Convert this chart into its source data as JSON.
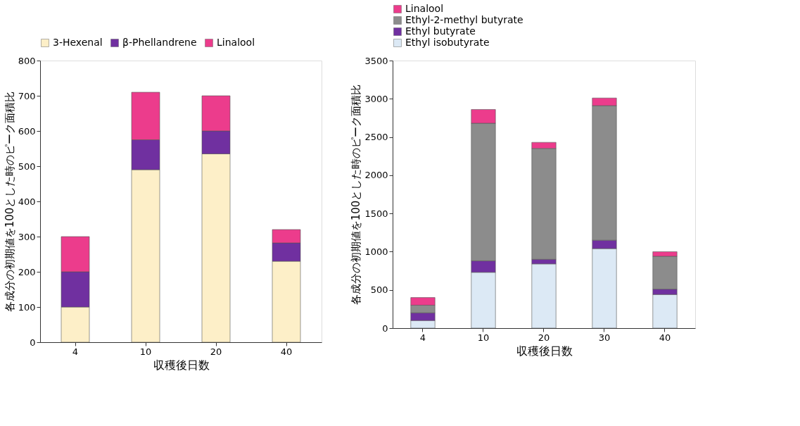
{
  "chart_data": [
    {
      "type": "bar",
      "stacked": true,
      "xlabel": "収穫後日数",
      "ylabel": "各成分の初期値を100とした時のピーク面積比",
      "categories": [
        "4",
        "10",
        "20",
        "40"
      ],
      "ylim": [
        0,
        800
      ],
      "yticks": [
        0,
        100,
        200,
        300,
        400,
        500,
        600,
        700,
        800
      ],
      "grid": false,
      "legend": "top",
      "series": [
        {
          "name": "3-Hexenal",
          "color": "#fdefc8",
          "values": [
            100,
            490,
            535,
            230
          ]
        },
        {
          "name": "β-Phellandrene",
          "color": "#7030a0",
          "values": [
            100,
            85,
            65,
            52
          ]
        },
        {
          "name": "Linalool",
          "color": "#ec3c8c",
          "values": [
            100,
            135,
            100,
            38
          ]
        }
      ]
    },
    {
      "type": "bar",
      "stacked": true,
      "xlabel": "収穫後日数",
      "ylabel": "各成分の初期値を100とした時のピーク面積比",
      "categories": [
        "4",
        "10",
        "20",
        "30",
        "40"
      ],
      "ylim": [
        0,
        3500
      ],
      "yticks": [
        0,
        500,
        1000,
        1500,
        2000,
        2500,
        3000,
        3500
      ],
      "grid": false,
      "legend": "top",
      "series": [
        {
          "name": "Ethyl isobutyrate",
          "color": "#dce9f5",
          "values": [
            100,
            730,
            840,
            1040,
            440
          ]
        },
        {
          "name": "Ethyl butyrate",
          "color": "#7030a0",
          "values": [
            100,
            150,
            60,
            110,
            70
          ]
        },
        {
          "name": "Ethyl-2-methyl butyrate",
          "color": "#8c8c8c",
          "values": [
            100,
            1800,
            1450,
            1760,
            430
          ]
        },
        {
          "name": "Linalool",
          "color": "#ec3c8c",
          "values": [
            100,
            180,
            80,
            100,
            60
          ]
        }
      ]
    }
  ]
}
